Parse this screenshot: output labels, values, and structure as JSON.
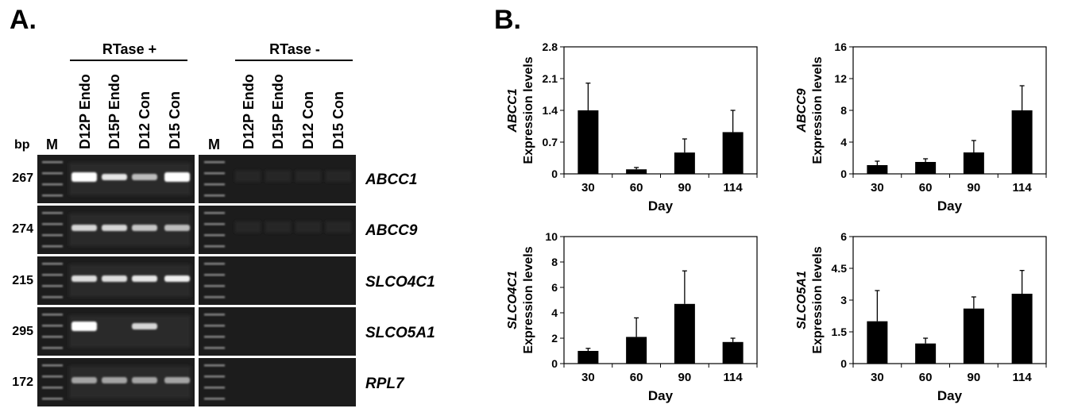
{
  "panel_a": {
    "letter": "A.",
    "rtase_plus": "RTase +",
    "rtase_minus": "RTase -",
    "bp_header": "bp",
    "marker_header": "M",
    "lanes": [
      "D12P Endo",
      "D15P Endo",
      "D12 Con",
      "D15 Con"
    ],
    "rows": [
      {
        "gene": "ABCC1",
        "bp": "267",
        "bands": [
          1.0,
          0.85,
          0.6,
          1.0
        ]
      },
      {
        "gene": "ABCC9",
        "bp": "274",
        "bands": [
          0.75,
          0.75,
          0.65,
          0.6
        ]
      },
      {
        "gene": "SLCO4C1",
        "bp": "215",
        "bands": [
          0.8,
          0.8,
          0.85,
          0.9
        ]
      },
      {
        "gene": "SLCO5A1",
        "bp": "295",
        "bands": [
          1.0,
          0.0,
          0.75,
          0.0
        ]
      },
      {
        "gene": "RPL7",
        "bp": "172",
        "bands": [
          0.45,
          0.45,
          0.45,
          0.45
        ]
      }
    ]
  },
  "panel_b": {
    "letter": "B."
  },
  "colors": {
    "bar": "#000000",
    "gel_bg": "#1c1c1c",
    "band": "#ffffff"
  },
  "chart_data": [
    {
      "type": "bar",
      "categories": [
        "30",
        "60",
        "90",
        "114"
      ],
      "values": [
        1.4,
        0.1,
        0.47,
        0.92
      ],
      "errors": [
        0.6,
        0.04,
        0.3,
        0.48
      ],
      "ylim": [
        0,
        2.8
      ],
      "yticks": [
        "0",
        "0.7",
        "1.4",
        "2.1",
        "2.8"
      ],
      "ylabel_gene": "ABCC1",
      "ylabel": "Expression levels",
      "xlabel": "Day",
      "grid": false
    },
    {
      "type": "bar",
      "categories": [
        "30",
        "60",
        "90",
        "114"
      ],
      "values": [
        1.1,
        1.5,
        2.7,
        8.0
      ],
      "errors": [
        0.5,
        0.4,
        1.5,
        3.1
      ],
      "ylim": [
        0,
        16
      ],
      "yticks": [
        "0",
        "4",
        "8",
        "12",
        "16"
      ],
      "ylabel_gene": "ABCC9",
      "ylabel": "Expression levels",
      "xlabel": "Day",
      "grid": false
    },
    {
      "type": "bar",
      "categories": [
        "30",
        "60",
        "90",
        "114"
      ],
      "values": [
        1.0,
        2.1,
        4.7,
        1.7
      ],
      "errors": [
        0.2,
        1.5,
        2.6,
        0.3
      ],
      "ylim": [
        0,
        10
      ],
      "yticks": [
        "0",
        "2",
        "4",
        "6",
        "8",
        "10"
      ],
      "ylabel_gene": "SLCO4C1",
      "ylabel": "Expression levels",
      "xlabel": "Day",
      "grid": false
    },
    {
      "type": "bar",
      "categories": [
        "30",
        "60",
        "90",
        "114"
      ],
      "values": [
        2.0,
        0.95,
        2.6,
        3.3
      ],
      "errors": [
        1.45,
        0.25,
        0.55,
        1.1
      ],
      "ylim": [
        0,
        6
      ],
      "yticks": [
        "0",
        "1.5",
        "3",
        "4.5",
        "6"
      ],
      "ylabel_gene": "SLCO5A1",
      "ylabel": "Expression levels",
      "xlabel": "Day",
      "grid": false
    }
  ]
}
